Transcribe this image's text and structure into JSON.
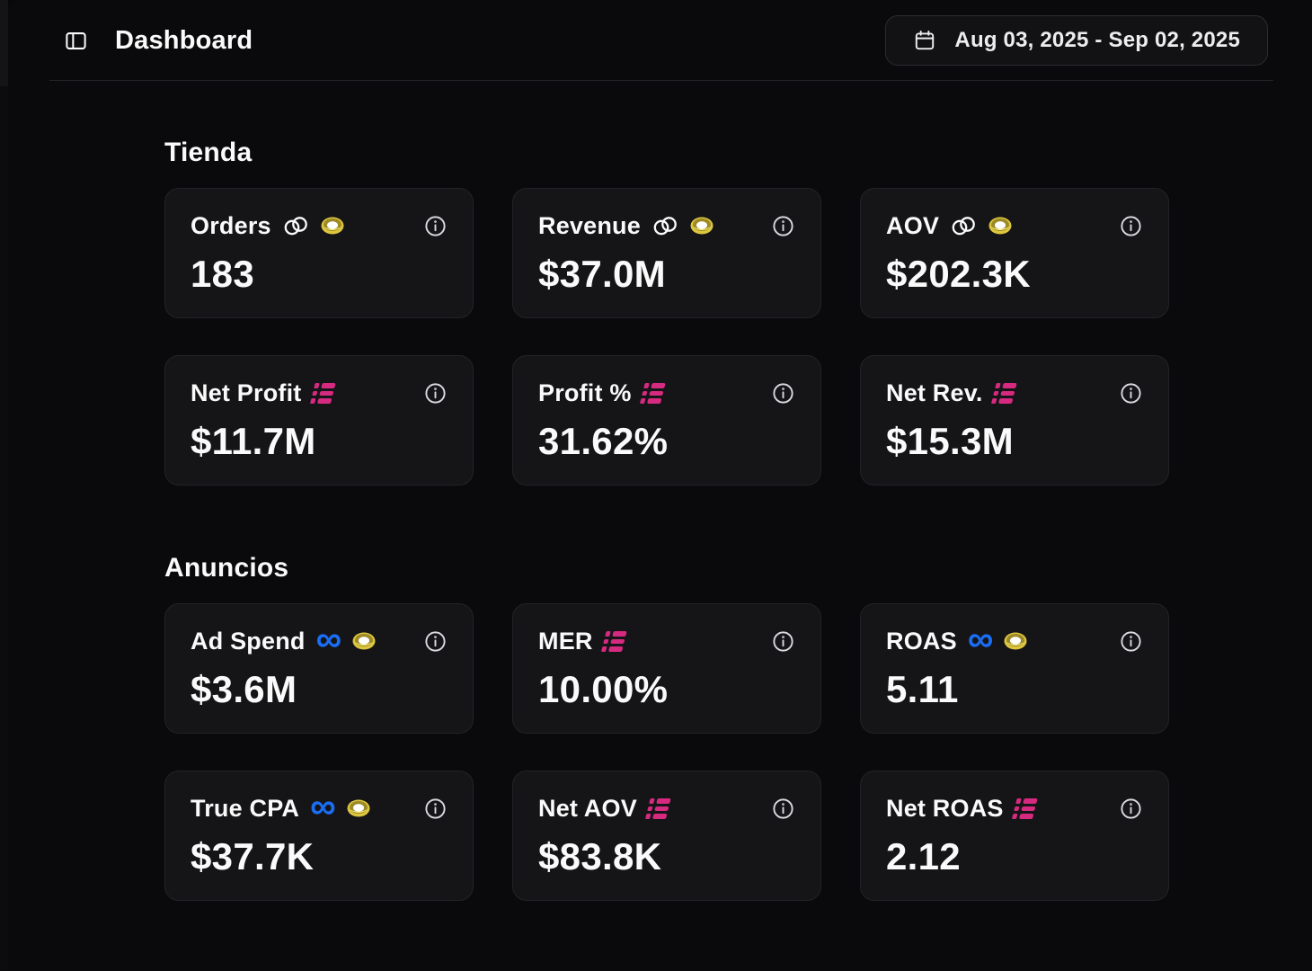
{
  "header": {
    "title": "Dashboard",
    "date_range": "Aug 03, 2025 - Sep 02, 2025"
  },
  "sections": [
    {
      "title": "Tienda",
      "cards": [
        {
          "label": "Orders",
          "value": "183",
          "icons": [
            "rings",
            "coin"
          ]
        },
        {
          "label": "Revenue",
          "value": "$37.0M",
          "icons": [
            "rings",
            "coin"
          ]
        },
        {
          "label": "AOV",
          "value": "$202.3K",
          "icons": [
            "rings",
            "coin"
          ]
        },
        {
          "label": "Net Profit",
          "value": "$11.7M",
          "icons": [
            "checklist"
          ]
        },
        {
          "label": "Profit %",
          "value": "31.62%",
          "icons": [
            "checklist"
          ]
        },
        {
          "label": "Net Rev.",
          "value": "$15.3M",
          "icons": [
            "checklist"
          ]
        }
      ]
    },
    {
      "title": "Anuncios",
      "cards": [
        {
          "label": "Ad Spend",
          "value": "$3.6M",
          "icons": [
            "meta",
            "coin"
          ]
        },
        {
          "label": "MER",
          "value": "10.00%",
          "icons": [
            "checklist"
          ]
        },
        {
          "label": "ROAS",
          "value": "5.11",
          "icons": [
            "meta",
            "coin"
          ]
        },
        {
          "label": "True CPA",
          "value": "$37.7K",
          "icons": [
            "meta",
            "coin"
          ]
        },
        {
          "label": "Net AOV",
          "value": "$83.8K",
          "icons": [
            "checklist"
          ]
        },
        {
          "label": "Net ROAS",
          "value": "2.12",
          "icons": [
            "checklist"
          ]
        }
      ]
    }
  ],
  "colors": {
    "accent_pink": "#d62a80",
    "meta_blue": "#1a6ef5",
    "coin_gold": "#ddc63e",
    "card_bg": "#151518",
    "page_bg": "#0a0a0c"
  }
}
